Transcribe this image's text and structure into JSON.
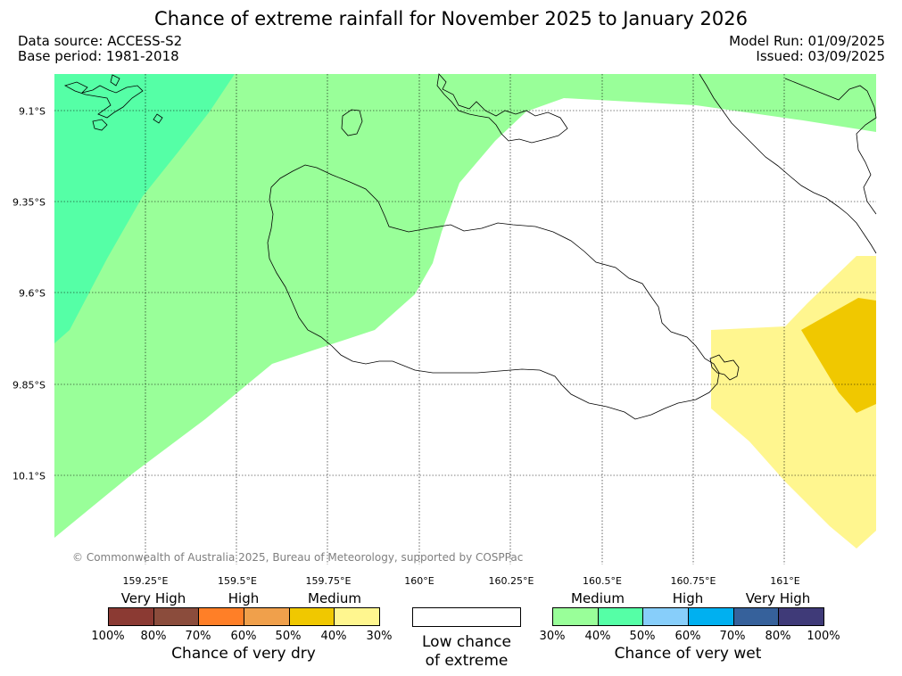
{
  "header": {
    "title": "Chance of extreme rainfall for November 2025 to January 2026",
    "data_source": "Data source: ACCESS-S2",
    "base_period": "Base period: 1981-2018",
    "model_run": "Model Run: 01/09/2025",
    "issued": "Issued: 03/09/2025"
  },
  "map": {
    "lon_labels": [
      "159.25°E",
      "159.5°E",
      "159.75°E",
      "160°E",
      "160.25°E",
      "160.5°E",
      "160.75°E",
      "161°E"
    ],
    "lat_labels": [
      "9.1°S",
      "9.35°S",
      "9.6°S",
      "9.85°S",
      "10.1°S"
    ],
    "copyright": "© Commonwealth of Australia 2025, Bureau of Meteorology, supported by COSPPac",
    "fill_colors": {
      "wet_medium": "#99ff99",
      "wet_high": "#55ffa6",
      "dry_medium_40": "#fff68f",
      "dry_medium_50": "#f0c800",
      "coastline": "#000000",
      "gridline": "#000000"
    }
  },
  "legend": {
    "dry": {
      "categories": [
        "Very High",
        "High",
        "Medium"
      ],
      "colors": [
        "#8b3a33",
        "#8b4c3c",
        "#ff7f27",
        "#f0a04b",
        "#f0c800",
        "#fff68f"
      ],
      "ticks": [
        "100%",
        "80%",
        "70%",
        "60%",
        "50%",
        "40%",
        "30%"
      ],
      "title": "Chance of very dry"
    },
    "low": {
      "line1": "Low chance",
      "line2": "of extreme",
      "color": "#ffffff"
    },
    "wet": {
      "categories": [
        "Medium",
        "High",
        "Very High"
      ],
      "colors": [
        "#99ff99",
        "#55ffa6",
        "#87cefa",
        "#00b0f0",
        "#36619b",
        "#3f3a78"
      ],
      "ticks": [
        "30%",
        "40%",
        "50%",
        "60%",
        "70%",
        "80%",
        "100%"
      ],
      "title": "Chance of very wet"
    }
  }
}
